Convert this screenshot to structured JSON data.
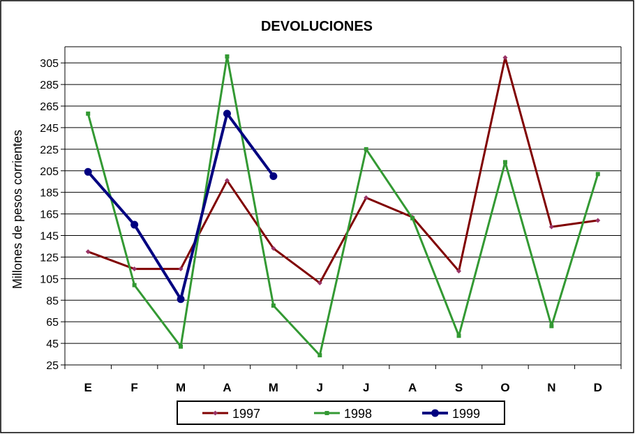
{
  "chart_data": {
    "type": "line",
    "title": "DEVOLUCIONES",
    "xlabel": "",
    "ylabel": "Millones de pesos corrientes",
    "categories": [
      "E",
      "F",
      "M",
      "A",
      "M",
      "J",
      "J",
      "A",
      "S",
      "O",
      "N",
      "D"
    ],
    "yticks": [
      25,
      45,
      65,
      85,
      105,
      125,
      145,
      165,
      185,
      205,
      225,
      245,
      265,
      285,
      305
    ],
    "ylim": [
      25,
      320
    ],
    "grid": true,
    "legend_position": "bottom",
    "series": [
      {
        "name": "1997",
        "color": "#800000",
        "marker_color": "#993366",
        "marker": "diamond",
        "values": [
          130,
          114,
          114,
          196,
          133,
          101,
          180,
          162,
          112,
          310,
          153,
          159
        ]
      },
      {
        "name": "1998",
        "color": "#339933",
        "marker_color": "#339933",
        "marker": "square",
        "values": [
          258,
          99,
          42,
          311,
          80,
          34,
          225,
          161,
          52,
          213,
          61,
          202
        ]
      },
      {
        "name": "1999",
        "color": "#000080",
        "marker_color": "#000080",
        "marker": "circle",
        "values": [
          204,
          155,
          86,
          258,
          200,
          null,
          null,
          null,
          null,
          null,
          null,
          null
        ]
      }
    ]
  }
}
